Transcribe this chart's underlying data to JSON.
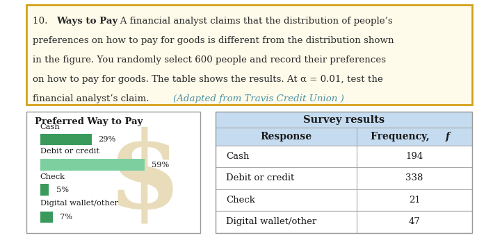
{
  "title_number": "10.",
  "title_bold": "Ways to Pay",
  "body_lines": [
    [
      "10. ",
      false,
      false,
      "Ways to Pay",
      true,
      false,
      "   A financial analyst claims that the distribution of people’s",
      false,
      false
    ],
    [
      "preferences on how to pay for goods is different from the distribution shown",
      false,
      false
    ],
    [
      "in the figure. You randomly select 600 people and record their preferences",
      false,
      false
    ],
    [
      "on how to pay for goods. The table shows the results. At α = 0.01, test the",
      false,
      false
    ],
    [
      "financial analyst’s claim. ",
      false,
      false,
      "(Adapted from Travis Credit Union )",
      false,
      true
    ]
  ],
  "box_border_color": "#D4A017",
  "box_bg_color": "#FFFBEA",
  "bar_title": "Preferred Way to Pay",
  "bar_categories": [
    "Cash",
    "Debit or credit",
    "Check",
    "Digital wallet/other"
  ],
  "bar_values": [
    29,
    59,
    5,
    7
  ],
  "bar_labels": [
    "29%",
    "59%",
    "5%",
    "7%"
  ],
  "bar_color_cash": "#3A9A5C",
  "bar_color_debit": "#7DCFA0",
  "bar_color_check": "#3A9A5C",
  "bar_color_digital": "#3A9A5C",
  "dollar_color": "#E8DCBA",
  "table_title": "Survey results",
  "table_header_bg": "#C5DCF0",
  "col1_header": "Response",
  "col2_header": "Frequency, f",
  "responses": [
    "Cash",
    "Debit or credit",
    "Check",
    "Digital wallet/other"
  ],
  "frequencies": [
    194,
    338,
    21,
    47
  ],
  "text_color": "#2A2A2A",
  "italic_color": "#4A90A4"
}
